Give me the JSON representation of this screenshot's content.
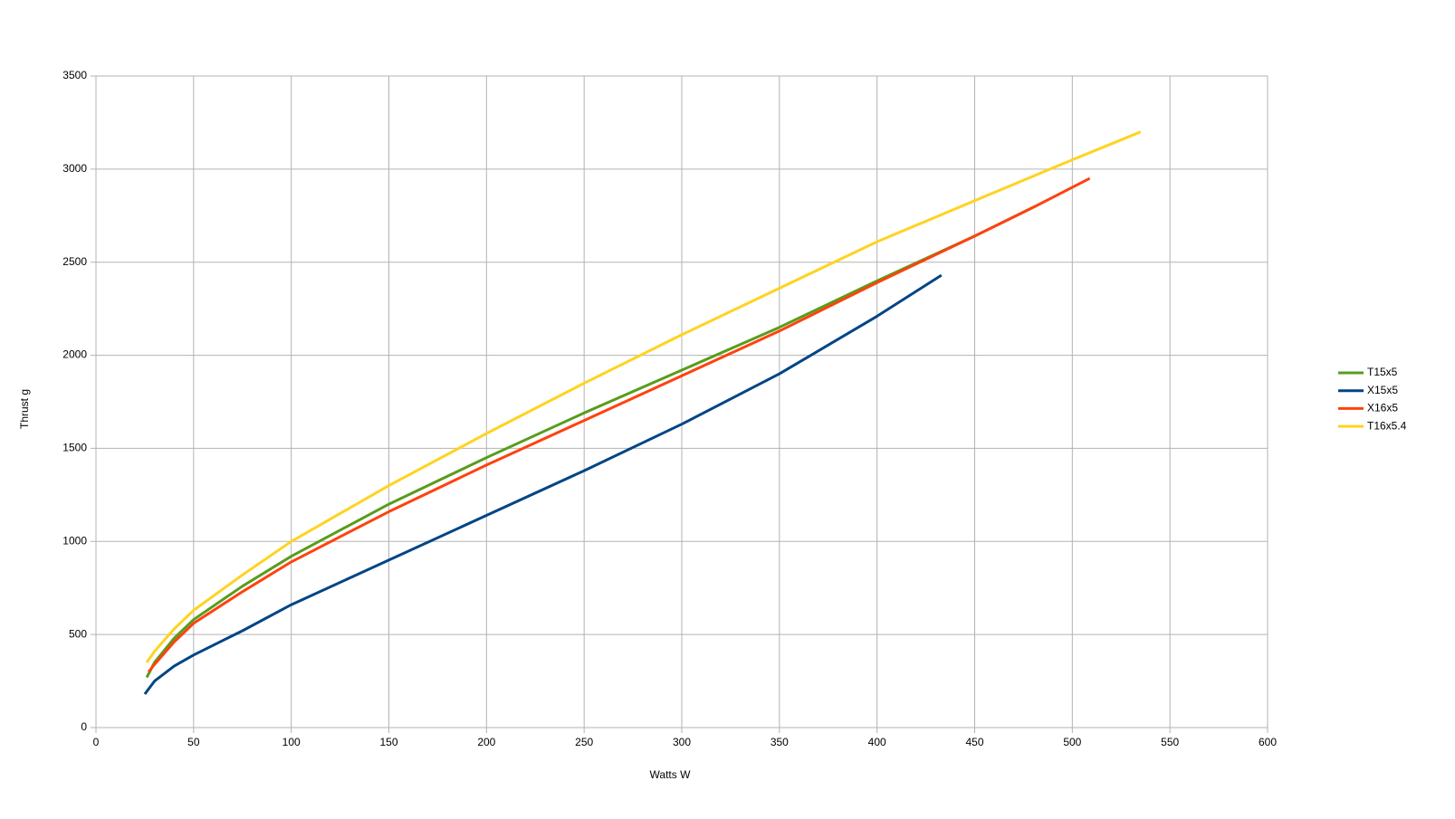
{
  "chart_data": {
    "type": "line",
    "x_label": "Watts W",
    "y_label": "Thrust g",
    "xlim": [
      0,
      600
    ],
    "xticks": [
      0,
      50,
      100,
      150,
      200,
      250,
      300,
      350,
      400,
      450,
      500,
      550,
      600
    ],
    "ylim": [
      0,
      3500
    ],
    "yticks": [
      0,
      500,
      1000,
      1500,
      2000,
      2500,
      3000,
      3500
    ],
    "grid": true,
    "legend": "right",
    "series": [
      {
        "name": "T15x5",
        "color": "#579d1c",
        "x": [
          26,
          30,
          40,
          50,
          75,
          100,
          150,
          200,
          250,
          300,
          350,
          400,
          450,
          481
        ],
        "values": [
          270,
          350,
          480,
          580,
          760,
          920,
          1200,
          1450,
          1690,
          1920,
          2150,
          2400,
          2640,
          2800
        ]
      },
      {
        "name": "X15x5",
        "color": "#004586",
        "x": [
          25,
          30,
          40,
          50,
          75,
          100,
          150,
          200,
          250,
          300,
          350,
          400,
          433
        ],
        "values": [
          180,
          250,
          330,
          390,
          520,
          660,
          900,
          1140,
          1380,
          1630,
          1900,
          2210,
          2430
        ]
      },
      {
        "name": "X16x5",
        "color": "#ff420e",
        "x": [
          27,
          30,
          40,
          50,
          75,
          100,
          150,
          200,
          250,
          300,
          350,
          400,
          450,
          481,
          509
        ],
        "values": [
          300,
          340,
          460,
          560,
          730,
          890,
          1160,
          1410,
          1650,
          1890,
          2130,
          2390,
          2640,
          2800,
          2950
        ]
      },
      {
        "name": "T16x5.4",
        "color": "#ffd320",
        "x": [
          26,
          30,
          40,
          50,
          75,
          100,
          150,
          200,
          250,
          300,
          350,
          400,
          450,
          500,
          535
        ],
        "values": [
          350,
          410,
          530,
          630,
          820,
          1000,
          1300,
          1580,
          1850,
          2110,
          2360,
          2610,
          2830,
          3050,
          3200
        ]
      }
    ]
  }
}
